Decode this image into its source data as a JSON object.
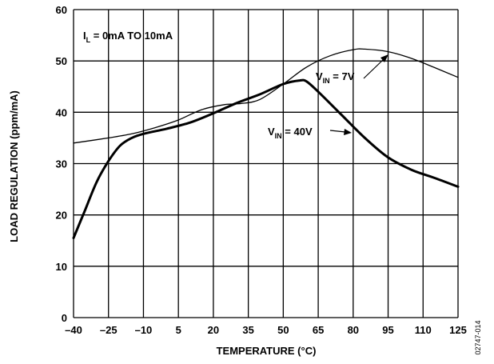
{
  "chart_data": {
    "type": "line",
    "xlabel": "TEMPERATURE (°C)",
    "ylabel": "LOAD REGULATION (ppm/mA)",
    "xlim": [
      -40,
      125
    ],
    "ylim": [
      0,
      60
    ],
    "grid": true,
    "x_ticks": [
      -40,
      -25,
      -10,
      5,
      20,
      35,
      50,
      65,
      80,
      95,
      110,
      125
    ],
    "y_ticks": [
      0,
      10,
      20,
      30,
      40,
      50,
      60
    ],
    "x_tick_labels": [
      "–40",
      "–25",
      "–10",
      "5",
      "20",
      "35",
      "50",
      "65",
      "80",
      "95",
      "110",
      "125"
    ],
    "y_tick_labels": [
      "0",
      "10",
      "20",
      "30",
      "40",
      "50",
      "60"
    ],
    "series": [
      {
        "label_main": "V",
        "label_sub": "IN",
        "label_rest": " = 7V",
        "stroke": "thin",
        "points": [
          [
            -40,
            34.0
          ],
          [
            -25,
            35.0
          ],
          [
            -15,
            35.8
          ],
          [
            -5,
            37.0
          ],
          [
            5,
            38.5
          ],
          [
            15,
            40.5
          ],
          [
            25,
            41.5
          ],
          [
            32,
            41.7
          ],
          [
            40,
            42.5
          ],
          [
            50,
            45.5
          ],
          [
            60,
            48.8
          ],
          [
            70,
            51.0
          ],
          [
            80,
            52.2
          ],
          [
            85,
            52.3
          ],
          [
            95,
            51.8
          ],
          [
            105,
            50.5
          ],
          [
            115,
            48.7
          ],
          [
            125,
            46.8
          ]
        ]
      },
      {
        "label_main": "V",
        "label_sub": "IN",
        "label_rest": " = 40V",
        "stroke": "thick",
        "points": [
          [
            -40,
            15.5
          ],
          [
            -35,
            21.0
          ],
          [
            -30,
            26.5
          ],
          [
            -25,
            30.5
          ],
          [
            -20,
            33.5
          ],
          [
            -15,
            35.0
          ],
          [
            -10,
            35.8
          ],
          [
            0,
            36.8
          ],
          [
            10,
            38.0
          ],
          [
            20,
            39.8
          ],
          [
            30,
            41.8
          ],
          [
            40,
            43.5
          ],
          [
            50,
            45.5
          ],
          [
            57,
            46.2
          ],
          [
            60,
            46.0
          ],
          [
            65,
            44.0
          ],
          [
            75,
            39.5
          ],
          [
            85,
            35.0
          ],
          [
            95,
            31.2
          ],
          [
            105,
            28.8
          ],
          [
            115,
            27.2
          ],
          [
            125,
            25.5
          ]
        ]
      }
    ],
    "annotations": {
      "condition": {
        "main": "I",
        "sub": "L",
        "rest": " = 0mA TO 10mA"
      }
    }
  },
  "figure_code": "02747-014"
}
